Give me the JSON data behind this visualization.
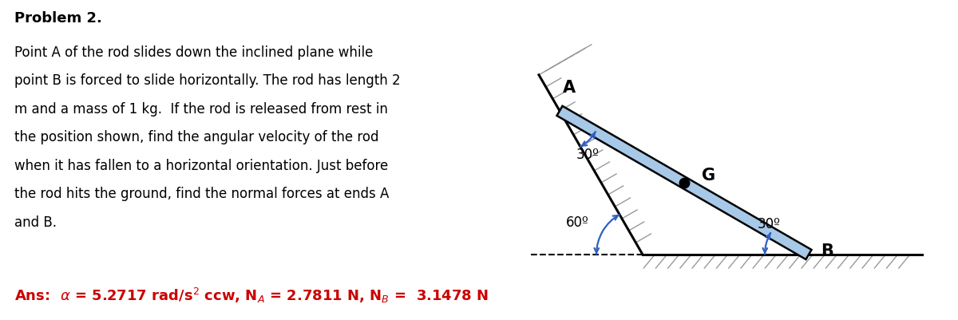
{
  "title": "Problem 2.",
  "problem_text_lines": [
    "Point A of the rod slides down the inclined plane while",
    "point B is forced to slide horizontally. The rod has length 2",
    "m and a mass of 1 kg.  If the rod is released from rest in",
    "the position shown, find the angular velocity of the rod",
    "when it has fallen to a horizontal orientation. Just before",
    "the rod hits the ground, find the normal forces at ends A",
    "and B."
  ],
  "background_color": "#ffffff",
  "text_color": "#000000",
  "ans_color": "#cc0000",
  "rod_fill_color": "#a8c8e8",
  "rod_edge_color": "#000000",
  "hatch_color": "#999999",
  "angle_arc_color": "#3060c0",
  "diagram": {
    "label_A": "A",
    "label_B": "B",
    "label_G": "G",
    "angle_wall_label": "60º",
    "angle_rod_at_A_label": "30º",
    "angle_rod_at_B_label": "30º"
  }
}
